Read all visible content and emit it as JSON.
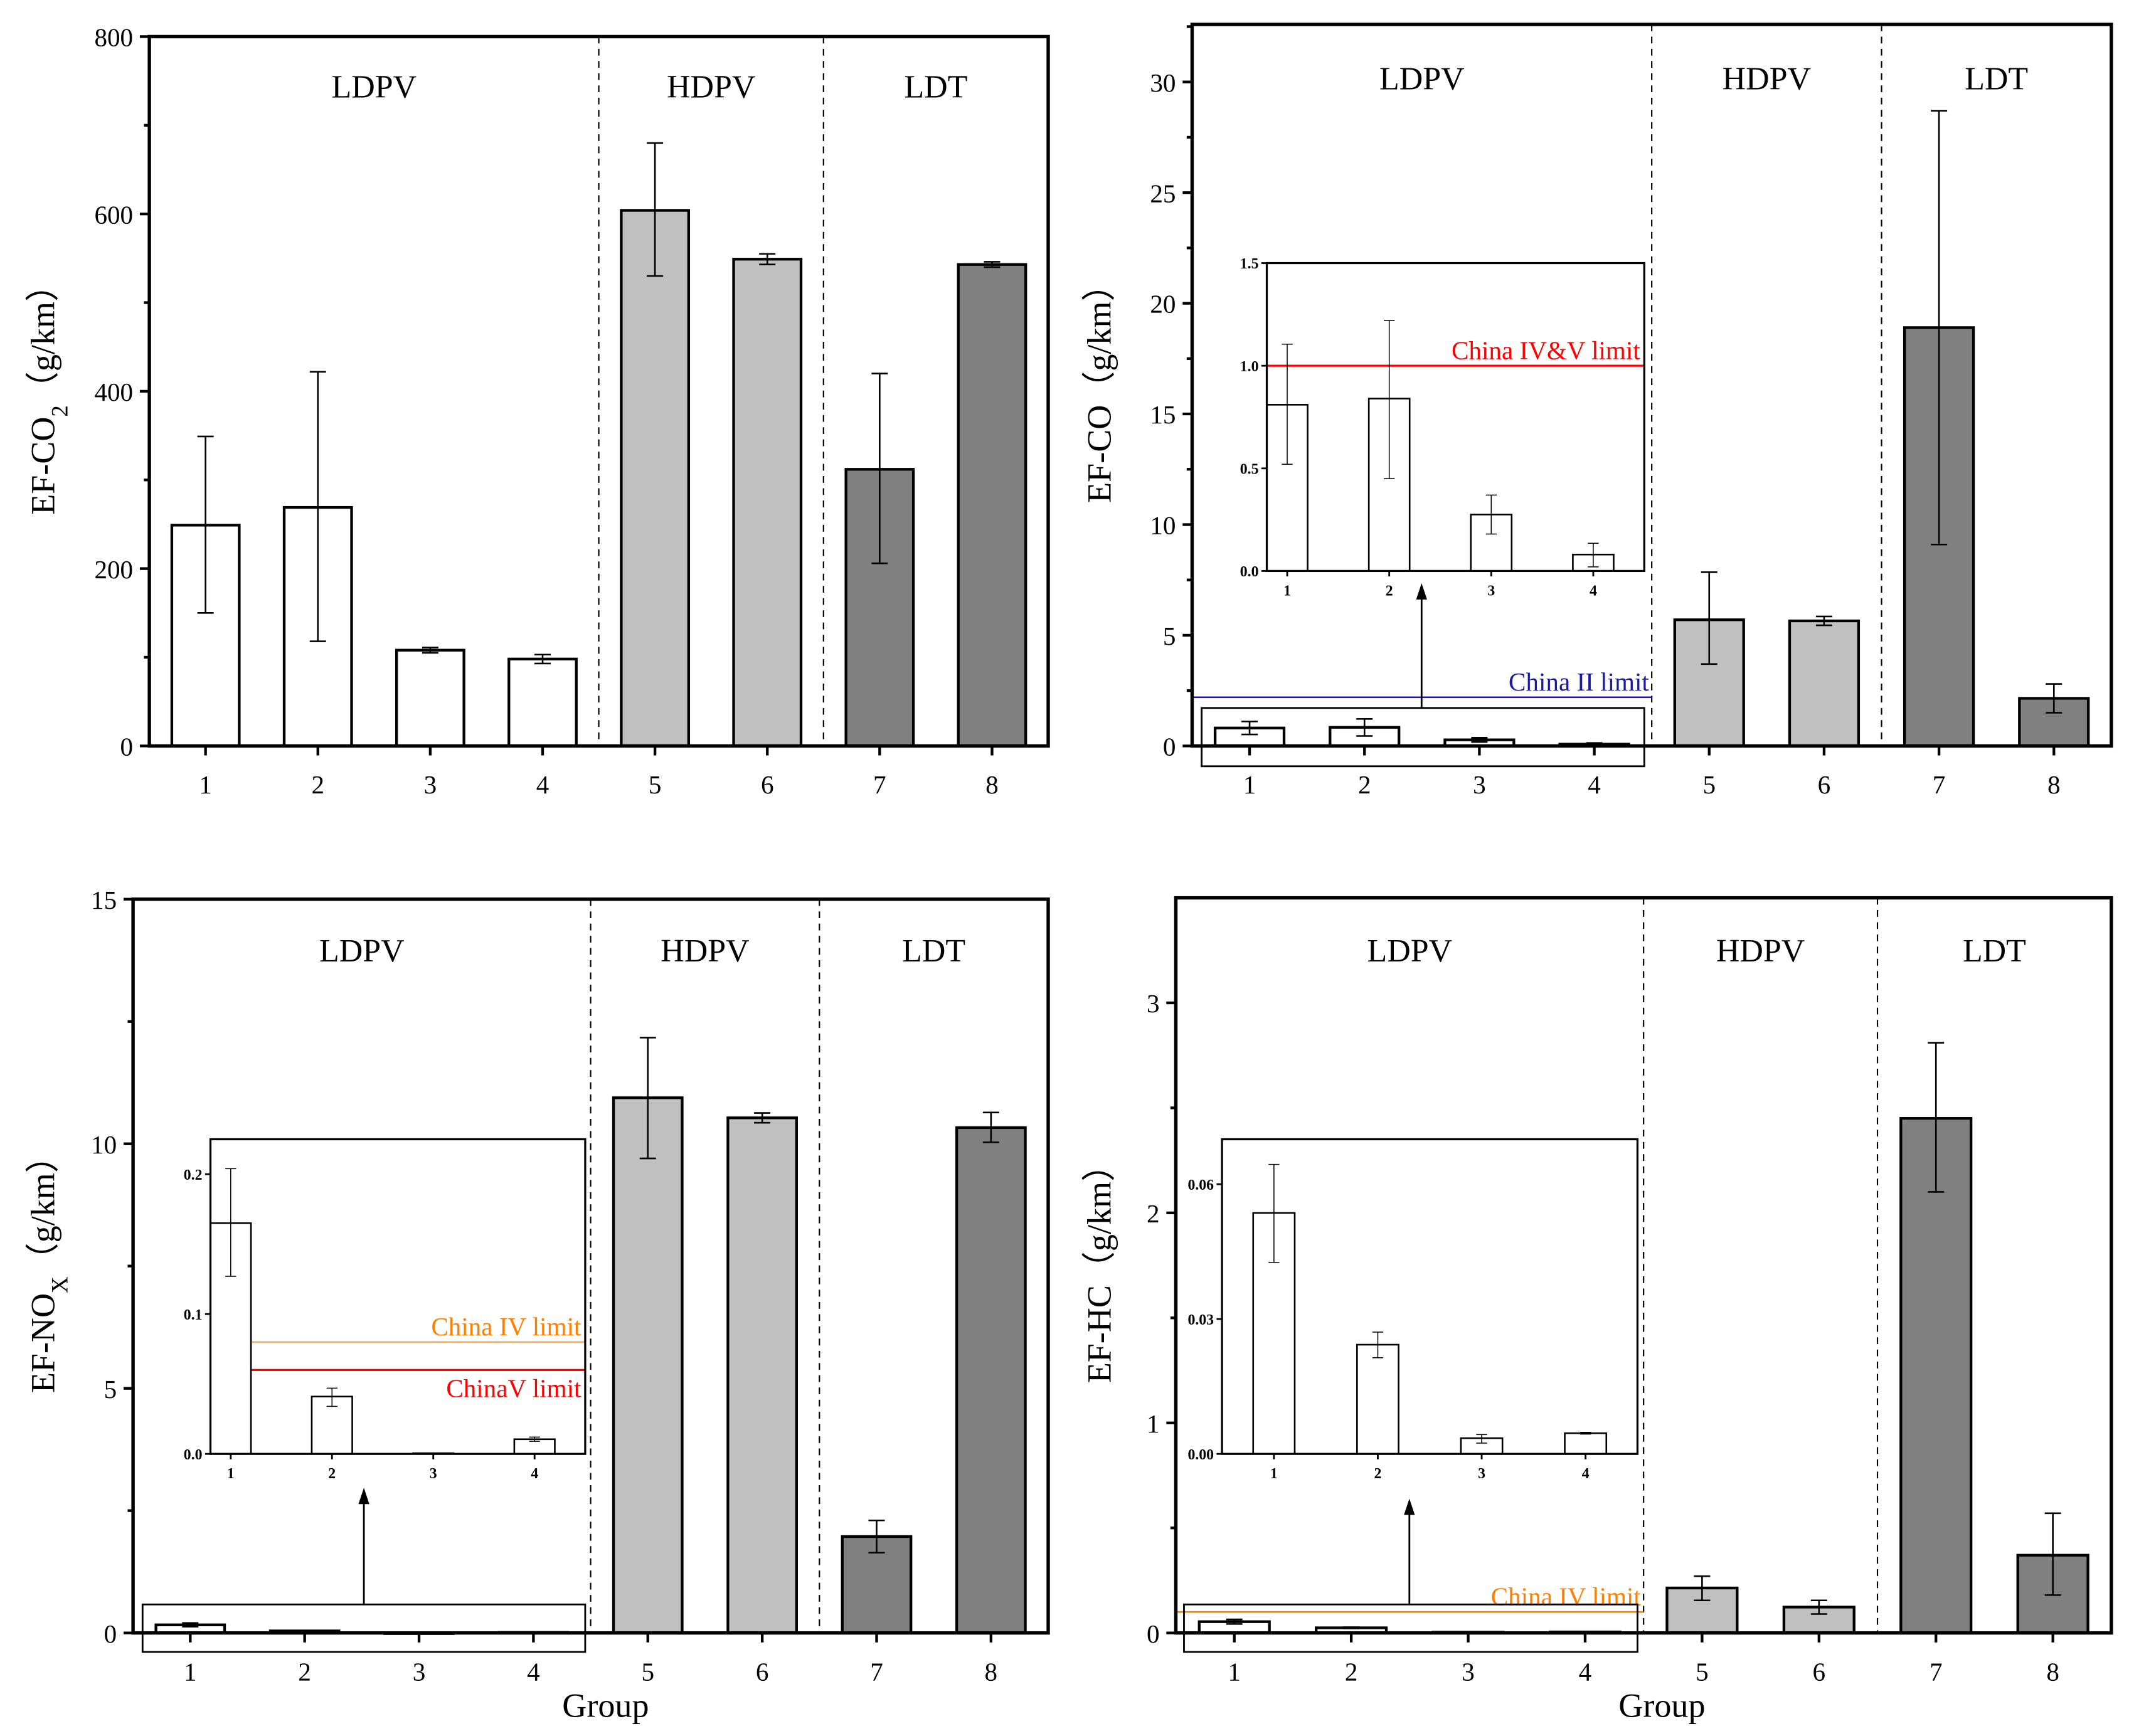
{
  "chart_data": [
    {
      "type": "bar",
      "title": "",
      "ylabel": {
        "main": "EF-CO",
        "sub": "2",
        "tail": "（g/km）"
      },
      "xlabel": "",
      "categories": [
        "1",
        "2",
        "3",
        "4",
        "5",
        "6",
        "7",
        "8"
      ],
      "values": [
        249,
        269,
        108,
        98,
        604,
        549,
        312,
        543
      ],
      "err_low": [
        150,
        118,
        105,
        93,
        530,
        543,
        206,
        540
      ],
      "err_high": [
        349,
        422,
        111,
        103,
        680,
        555,
        420,
        546
      ],
      "ylim": [
        0,
        800
      ],
      "yticks": [
        "0",
        "200",
        "400",
        "600",
        "800"
      ],
      "groups": [
        {
          "label": "LDPV",
          "range": [
            1,
            4
          ]
        },
        {
          "label": "HDPV",
          "range": [
            5,
            6
          ]
        },
        {
          "label": "LDT",
          "range": [
            7,
            8
          ]
        }
      ],
      "bar_colors": [
        "#ffffff",
        "#ffffff",
        "#ffffff",
        "#ffffff",
        "#c0c0c0",
        "#c0c0c0",
        "#808080",
        "#808080"
      ],
      "limits": [],
      "inset": null
    },
    {
      "type": "bar",
      "title": "",
      "ylabel": {
        "main": "EF-CO",
        "sub": "",
        "tail": "（g/km）"
      },
      "xlabel": "",
      "categories": [
        "1",
        "2",
        "3",
        "4",
        "5",
        "6",
        "7",
        "8"
      ],
      "values": [
        0.81,
        0.84,
        0.275,
        0.08,
        5.7,
        5.65,
        18.9,
        2.15
      ],
      "err_low": [
        0.52,
        0.45,
        0.18,
        0.02,
        3.7,
        5.45,
        9.1,
        1.5
      ],
      "err_high": [
        1.105,
        1.22,
        0.37,
        0.135,
        7.85,
        5.85,
        28.7,
        2.8
      ],
      "ylim": [
        0,
        32.6
      ],
      "yticks": [
        "0",
        "5",
        "10",
        "15",
        "20",
        "25",
        "30"
      ],
      "groups": [
        {
          "label": "LDPV",
          "range": [
            1,
            4
          ]
        },
        {
          "label": "HDPV",
          "range": [
            5,
            6
          ]
        },
        {
          "label": "LDT",
          "range": [
            7,
            8
          ]
        }
      ],
      "bar_colors": [
        "#ffffff",
        "#ffffff",
        "#ffffff",
        "#ffffff",
        "#c0c0c0",
        "#c0c0c0",
        "#808080",
        "#808080"
      ],
      "limits": [
        {
          "label": "China II limit",
          "value": 2.2,
          "color": "#1a1aa6",
          "x_range": [
            0.5,
            4.5
          ],
          "label_position": "above"
        }
      ],
      "inset": {
        "categories": [
          "1",
          "2",
          "3",
          "4"
        ],
        "ylim": [
          0,
          1.5
        ],
        "xlim": [
          0.8,
          4.5
        ],
        "yticks": [
          "0.0",
          "0.5",
          "1.0",
          "1.5"
        ],
        "limits": [
          {
            "label": "China IV&V limit",
            "value": 1.0,
            "color": "#ff0000",
            "label_position": "above"
          }
        ]
      }
    },
    {
      "type": "bar",
      "title": "",
      "ylabel": {
        "main": "EF-NO",
        "sub": "X",
        "tail": "（g/km）"
      },
      "xlabel": "Group",
      "categories": [
        "1",
        "2",
        "3",
        "4",
        "5",
        "6",
        "7",
        "8"
      ],
      "values": [
        0.165,
        0.041,
        0.0005,
        0.0105,
        10.94,
        10.53,
        1.97,
        10.33
      ],
      "err_low": [
        0.127,
        0.034,
        0.0004,
        0.009,
        9.7,
        10.43,
        1.64,
        10.03
      ],
      "err_high": [
        0.204,
        0.047,
        0.0006,
        0.012,
        12.17,
        10.63,
        2.3,
        10.64
      ],
      "ylim": [
        0,
        15
      ],
      "yticks": [
        "0",
        "5",
        "10",
        "15"
      ],
      "groups": [
        {
          "label": "LDPV",
          "range": [
            1,
            4
          ]
        },
        {
          "label": "HDPV",
          "range": [
            5,
            6
          ]
        },
        {
          "label": "LDT",
          "range": [
            7,
            8
          ]
        }
      ],
      "bar_colors": [
        "#ffffff",
        "#ffffff",
        "#ffffff",
        "#ffffff",
        "#c0c0c0",
        "#c0c0c0",
        "#808080",
        "#808080"
      ],
      "limits": [],
      "inset": {
        "categories": [
          "1",
          "2",
          "3",
          "4"
        ],
        "ylim": [
          0,
          0.225
        ],
        "xlim": [
          0.8,
          4.5
        ],
        "yticks": [
          "0.0",
          "0.1",
          "0.2"
        ],
        "limits": [
          {
            "label": "China IV limit",
            "value": 0.08,
            "color": "#ff8000",
            "label_position": "above"
          },
          {
            "label": "ChinaV limit",
            "value": 0.06,
            "color": "#ff0000",
            "label_position": "below"
          }
        ]
      }
    },
    {
      "type": "bar",
      "title": "",
      "ylabel": {
        "main": "EF-HC",
        "sub": "",
        "tail": "（g/km）"
      },
      "xlabel": "Group",
      "categories": [
        "1",
        "2",
        "3",
        "4",
        "5",
        "6",
        "7",
        "8"
      ],
      "values": [
        0.0536,
        0.0243,
        0.0035,
        0.0046,
        0.214,
        0.123,
        2.45,
        0.37
      ],
      "err_low": [
        0.0426,
        0.0214,
        0.0024,
        0.0044,
        0.155,
        0.09,
        2.1,
        0.18
      ],
      "err_high": [
        0.0644,
        0.0271,
        0.0043,
        0.0048,
        0.27,
        0.155,
        2.81,
        0.57
      ],
      "ylim": [
        0,
        3.5
      ],
      "yticks": [
        "0",
        "1",
        "2",
        "3"
      ],
      "groups": [
        {
          "label": "LDPV",
          "range": [
            1,
            4
          ]
        },
        {
          "label": "HDPV",
          "range": [
            5,
            6
          ]
        },
        {
          "label": "LDT",
          "range": [
            7,
            8
          ]
        }
      ],
      "bar_colors": [
        "#ffffff",
        "#ffffff",
        "#ffffff",
        "#ffffff",
        "#c0c0c0",
        "#c0c0c0",
        "#808080",
        "#808080"
      ],
      "limits": [
        {
          "label": "China IV limit",
          "value": 0.1,
          "color": "#ff8000",
          "x_range": [
            0.5,
            4.5
          ],
          "label_position": "above"
        }
      ],
      "inset": {
        "categories": [
          "1",
          "2",
          "3",
          "4"
        ],
        "ylim": [
          0,
          0.07
        ],
        "xlim": [
          0.5,
          4.5
        ],
        "yticks": [
          "0.00",
          "0.03",
          "0.06"
        ],
        "limits": []
      }
    }
  ]
}
